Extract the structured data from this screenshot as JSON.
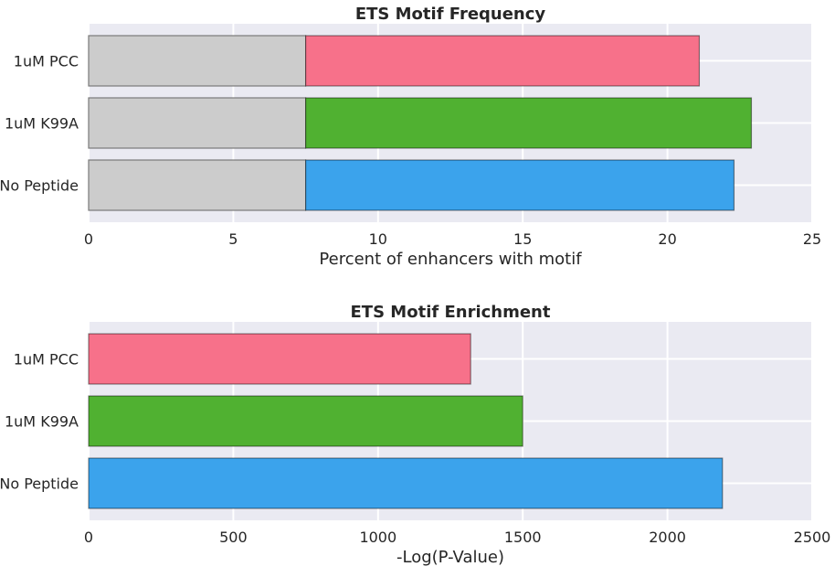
{
  "colors": {
    "panel_bg": "#eaeaf2",
    "grid": "#ffffff",
    "background_bar": "#cccccc",
    "background_bar_edge": "#7a7a7a"
  },
  "chart_data": [
    {
      "type": "bar",
      "orientation": "horizontal",
      "stacked": true,
      "title": "ETS Motif Frequency",
      "xlabel": "Percent of enhancers with motif",
      "ylabel": "",
      "categories": [
        "1uM PCC",
        "1uM K99A",
        "No Peptide"
      ],
      "xlim": [
        0,
        25
      ],
      "xticks": [
        0,
        5,
        10,
        15,
        20,
        25
      ],
      "grid": true,
      "series": [
        {
          "values": [
            7.5,
            7.5,
            7.5
          ],
          "colors": [
            "#cccccc",
            "#cccccc",
            "#cccccc"
          ]
        },
        {
          "values": [
            13.6,
            15.4,
            14.8
          ],
          "colors": [
            "#f7718a",
            "#50b131",
            "#3ba3ec"
          ]
        }
      ]
    },
    {
      "type": "bar",
      "orientation": "horizontal",
      "title": "ETS Motif Enrichment",
      "xlabel": "-Log(P-Value)",
      "ylabel": "",
      "categories": [
        "1uM PCC",
        "1uM K99A",
        "No Peptide"
      ],
      "xlim": [
        0,
        2500
      ],
      "xticks": [
        0,
        500,
        1000,
        1500,
        2000,
        2500
      ],
      "grid": true,
      "series": [
        {
          "values": [
            1320,
            1500,
            2190
          ],
          "colors": [
            "#f7718a",
            "#50b131",
            "#3ba3ec"
          ]
        }
      ]
    }
  ]
}
